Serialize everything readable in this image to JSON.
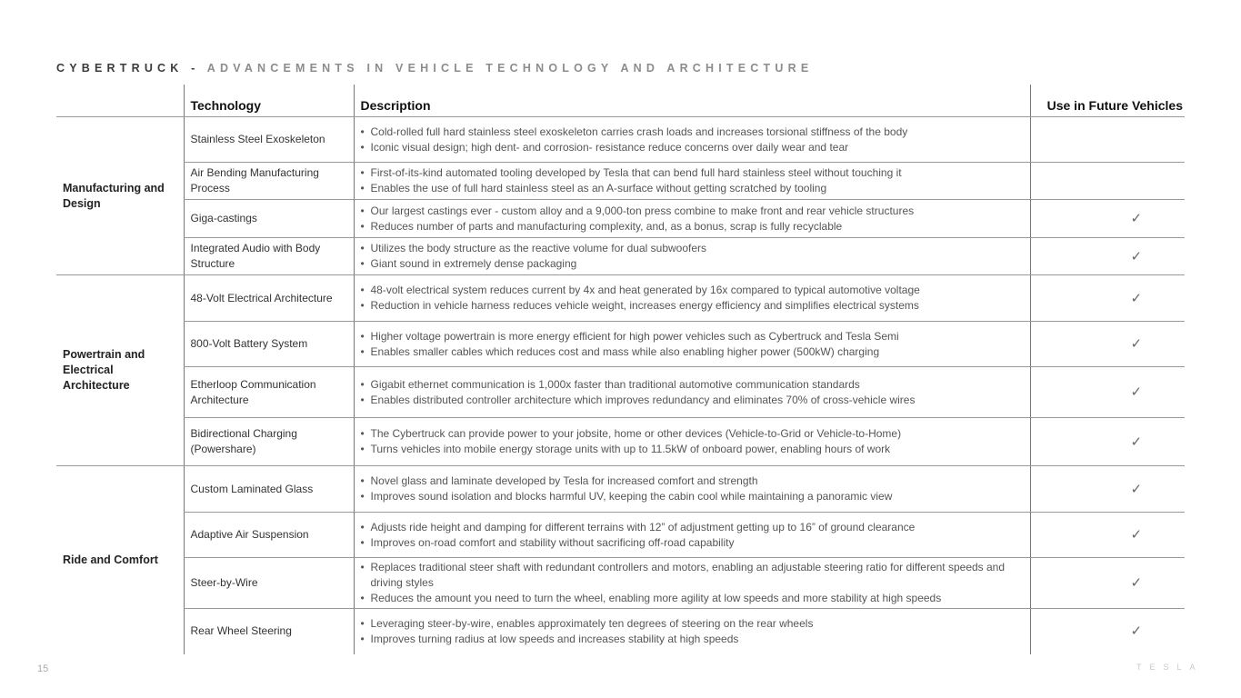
{
  "title": {
    "prefix": "CYBERTRUCK - ",
    "rest": "ADVANCEMENTS IN VEHICLE TECHNOLOGY AND ARCHITECTURE"
  },
  "table": {
    "headers": [
      "",
      "Technology",
      "Description",
      "Use in Future Vehicles"
    ],
    "groups": [
      {
        "name": "Manufacturing and Design",
        "rows": [
          {
            "tech": "Stainless Steel Exoskeleton",
            "h": 50,
            "desc": [
              "Cold-rolled full hard stainless steel exoskeleton carries crash loads and increases torsional stiffness of the body",
              "Iconic visual design; high dent- and corrosion- resistance reduce concerns over daily wear and tear"
            ],
            "future": false
          },
          {
            "tech": "Air Bending Manufacturing Process",
            "h": 41,
            "desc": [
              "First-of-its-kind automated tooling developed by Tesla that can bend full hard stainless steel without touching it",
              "Enables the use of full hard stainless steel as an A-surface without getting scratched by tooling"
            ],
            "future": false
          },
          {
            "tech": "Giga-castings",
            "h": 42,
            "desc": [
              "Our largest castings ever - custom alloy and a 9,000-ton press combine to make front and rear vehicle structures",
              "Reduces number of parts and manufacturing complexity, and, as a bonus, scrap is fully recyclable"
            ],
            "future": true
          },
          {
            "tech": "Integrated Audio with Body Structure",
            "h": 41,
            "desc": [
              "Utilizes the body structure as the reactive volume for dual subwoofers",
              "Giant sound in extremely dense packaging"
            ],
            "future": true
          }
        ]
      },
      {
        "name": "Powertrain and Electrical Architecture",
        "rows": [
          {
            "tech": "48-Volt Electrical Architecture",
            "h": 51,
            "desc": [
              "48-volt electrical system reduces current by 4x and heat generated by 16x compared to typical automotive voltage",
              "Reduction in vehicle harness reduces vehicle weight, increases energy efficiency and simplifies electrical systems"
            ],
            "future": true
          },
          {
            "tech": "800-Volt Battery System",
            "h": 50,
            "desc": [
              "Higher voltage powertrain is more energy efficient for high power vehicles such as Cybertruck and Tesla Semi",
              "Enables smaller cables which reduces cost and mass while also enabling higher power (500kW) charging"
            ],
            "future": true
          },
          {
            "tech": "Etherloop Communication Architecture",
            "h": 56,
            "desc": [
              "Gigabit ethernet communication is 1,000x faster than traditional automotive communication standards",
              "Enables distributed controller architecture which improves redundancy and eliminates 70% of cross-vehicle wires"
            ],
            "future": true
          },
          {
            "tech": "Bidirectional Charging (Powershare)",
            "h": 53,
            "desc": [
              "The Cybertruck can provide power to your jobsite, home or other devices (Vehicle-to-Grid or Vehicle-to-Home)",
              "Turns vehicles into mobile energy storage units with up to 11.5kW of onboard power, enabling hours of work"
            ],
            "future": true
          }
        ]
      },
      {
        "name": "Ride and Comfort",
        "rows": [
          {
            "tech": "Custom Laminated Glass",
            "h": 51,
            "desc": [
              "Novel glass and laminate developed by Tesla for increased comfort and strength",
              "Improves sound isolation and blocks harmful UV, keeping the cabin cool while maintaining a panoramic view"
            ],
            "future": true
          },
          {
            "tech": "Adaptive Air Suspension",
            "h": 50,
            "desc": [
              "Adjusts ride height and damping for different terrains with 12” of adjustment getting up to 16” of ground clearance",
              "Improves on-road comfort and stability without sacrificing off-road capability"
            ],
            "future": true
          },
          {
            "tech": "Steer-by-Wire",
            "h": 56,
            "desc": [
              "Replaces traditional steer shaft with redundant controllers and motors, enabling an adjustable steering ratio for different speeds and driving styles",
              "Reduces the amount you need to turn the wheel, enabling more agility at low speeds and more stability at high speeds"
            ],
            "future": true
          },
          {
            "tech": "Rear Wheel Steering",
            "h": 50,
            "desc": [
              "Leveraging steer-by-wire, enables approximately ten degrees of steering on the rear wheels",
              "Improves turning radius at low speeds and increases stability at high speeds"
            ],
            "future": true
          }
        ]
      }
    ],
    "check_mark": "✓"
  },
  "footer": {
    "page_number": "15",
    "logo": "TESLA"
  }
}
